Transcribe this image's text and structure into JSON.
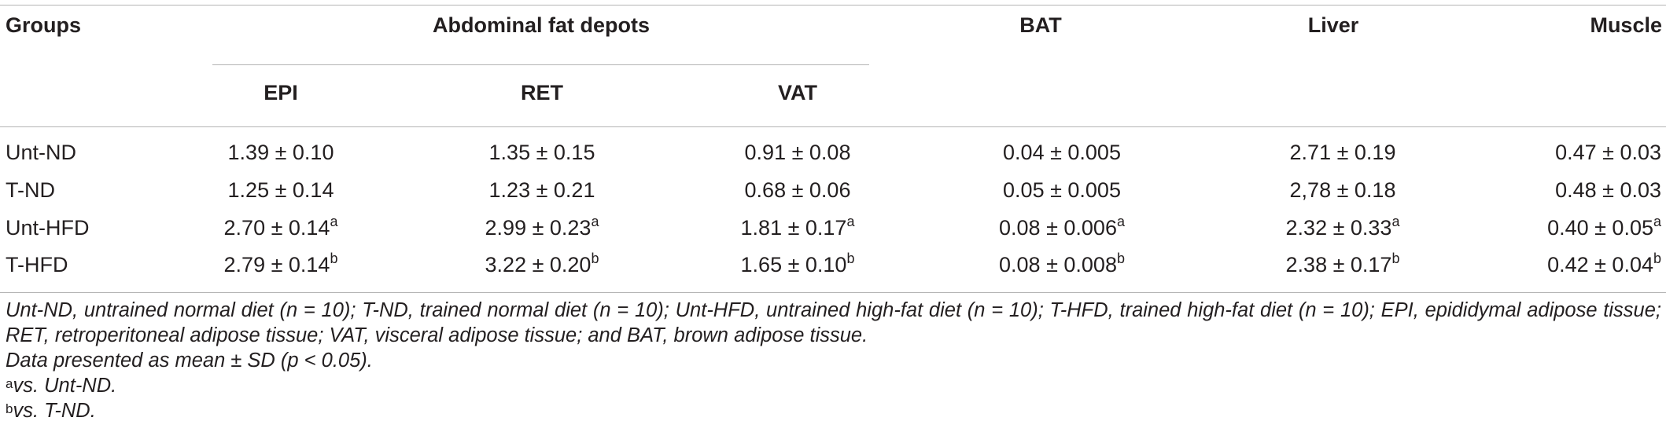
{
  "table": {
    "headers": {
      "groups": "Groups",
      "abdominal": "Abdominal fat depots",
      "bat": "BAT",
      "liver": "Liver",
      "muscle": "Muscle",
      "epi": "EPI",
      "ret": "RET",
      "vat": "VAT"
    },
    "rows": [
      {
        "group": "Unt-ND",
        "cells": [
          {
            "value": "1.39 ± 0.10",
            "sup": ""
          },
          {
            "value": "1.35 ± 0.15",
            "sup": ""
          },
          {
            "value": "0.91 ± 0.08",
            "sup": ""
          },
          {
            "value": "0.04 ± 0.005",
            "sup": ""
          },
          {
            "value": "2.71 ± 0.19",
            "sup": ""
          },
          {
            "value": "0.47 ± 0.03",
            "sup": ""
          }
        ]
      },
      {
        "group": "T-ND",
        "cells": [
          {
            "value": "1.25 ± 0.14",
            "sup": ""
          },
          {
            "value": "1.23 ± 0.21",
            "sup": ""
          },
          {
            "value": "0.68 ± 0.06",
            "sup": ""
          },
          {
            "value": "0.05 ± 0.005",
            "sup": ""
          },
          {
            "value": "2,78 ± 0.18",
            "sup": ""
          },
          {
            "value": "0.48 ± 0.03",
            "sup": ""
          }
        ]
      },
      {
        "group": "Unt-HFD",
        "cells": [
          {
            "value": "2.70 ± 0.14",
            "sup": "a"
          },
          {
            "value": "2.99 ± 0.23",
            "sup": "a"
          },
          {
            "value": "1.81 ± 0.17",
            "sup": "a"
          },
          {
            "value": "0.08 ± 0.006",
            "sup": "a"
          },
          {
            "value": "2.32 ± 0.33",
            "sup": "a"
          },
          {
            "value": "0.40 ± 0.05",
            "sup": "a"
          }
        ]
      },
      {
        "group": "T-HFD",
        "cells": [
          {
            "value": "2.79 ± 0.14",
            "sup": "b"
          },
          {
            "value": "3.22 ± 0.20",
            "sup": "b"
          },
          {
            "value": "1.65 ± 0.10",
            "sup": "b"
          },
          {
            "value": "0.08 ± 0.008",
            "sup": "b"
          },
          {
            "value": "2.38 ± 0.17",
            "sup": "b"
          },
          {
            "value": "0.42 ± 0.04",
            "sup": "b"
          }
        ]
      }
    ]
  },
  "footnotes": {
    "abbreviations": "Unt-ND, untrained normal diet (n = 10); T-ND, trained normal diet (n = 10); Unt-HFD, untrained high-fat diet (n = 10); T-HFD, trained high-fat diet (n = 10); EPI, epididymal adipose tissue; RET, retroperitoneal adipose tissue; VAT, visceral adipose tissue; and BAT, brown adipose tissue.",
    "data_note": "Data presented as mean ± SD (p < 0.05).",
    "note_a": {
      "marker": "a",
      "text": "vs. Unt-ND."
    },
    "note_b": {
      "marker": "b",
      "text": "vs. T-ND."
    }
  }
}
